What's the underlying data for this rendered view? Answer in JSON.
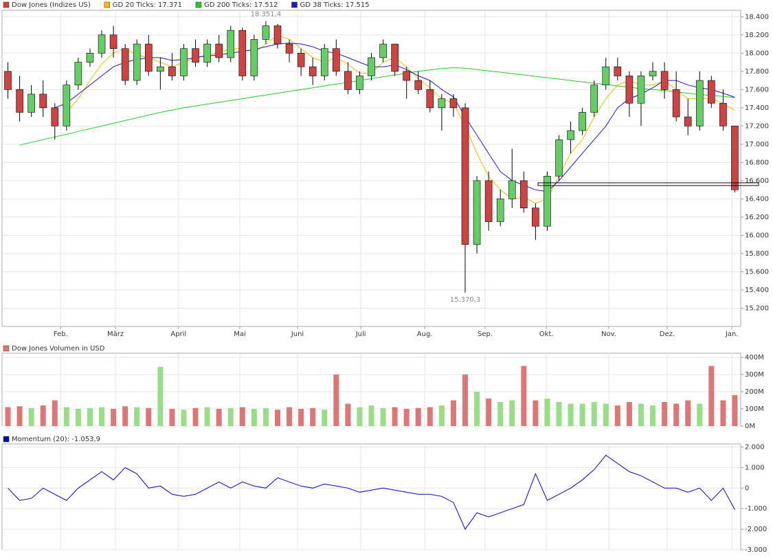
{
  "chart_data": [
    {
      "type": "candlestick",
      "name": "Dow Jones (Indizes US)",
      "x": [
        2,
        6,
        10,
        14,
        18,
        22,
        26,
        30,
        34,
        38,
        42,
        46,
        50,
        54,
        58,
        62,
        66,
        70,
        74,
        78,
        82,
        86,
        90,
        94,
        98,
        102,
        106,
        110,
        114,
        118,
        122,
        126,
        130,
        134,
        138,
        142,
        146,
        150,
        154,
        158,
        162,
        166,
        170,
        174,
        178,
        182,
        186,
        190,
        194,
        198,
        202,
        206,
        210,
        214,
        218,
        222,
        226,
        230,
        234,
        238,
        242,
        246,
        250
      ],
      "open": [
        17800,
        17600,
        17350,
        17550,
        17400,
        17200,
        17650,
        17900,
        18000,
        18200,
        18050,
        17700,
        18100,
        17800,
        17850,
        17750,
        18050,
        17900,
        18100,
        17950,
        18250,
        17750,
        18150,
        18300,
        18100,
        18000,
        17850,
        17750,
        18050,
        17800,
        17600,
        17750,
        17950,
        18100,
        17800,
        17700,
        17600,
        17400,
        17500,
        17400,
        15900,
        16600,
        16150,
        16400,
        16600,
        16300,
        16100,
        16650,
        17050,
        17150,
        17350,
        17650,
        17850,
        17750,
        17450,
        17750,
        17800,
        17600,
        17300,
        17200,
        17700,
        17450,
        17200
      ],
      "high": [
        17900,
        17750,
        17650,
        17700,
        17450,
        17700,
        17950,
        18050,
        18250,
        18300,
        18100,
        18150,
        18200,
        17950,
        18000,
        18100,
        18150,
        18150,
        18200,
        18300,
        18280,
        18200,
        18351.4,
        18320,
        18150,
        18050,
        17950,
        18100,
        18150,
        17900,
        17800,
        18000,
        18150,
        18100,
        17850,
        17800,
        17700,
        17550,
        17550,
        17450,
        16650,
        16700,
        16500,
        16950,
        16700,
        16350,
        16700,
        17100,
        17250,
        17400,
        17700,
        17950,
        17950,
        17800,
        17800,
        17900,
        17900,
        17800,
        17500,
        17800,
        17750,
        17600,
        17200
      ],
      "low": [
        17500,
        17250,
        17300,
        17300,
        17050,
        17150,
        17600,
        17850,
        17950,
        17950,
        17650,
        17650,
        17750,
        17600,
        17700,
        17700,
        17850,
        17850,
        17900,
        17900,
        17700,
        17700,
        18100,
        18050,
        17900,
        17750,
        17650,
        17700,
        17750,
        17550,
        17550,
        17700,
        17900,
        17750,
        17500,
        17550,
        17350,
        17150,
        17300,
        15370.3,
        15800,
        16050,
        16100,
        16300,
        16250,
        15950,
        16050,
        16600,
        16900,
        17100,
        17300,
        17600,
        17700,
        17300,
        17200,
        17700,
        17500,
        17250,
        17100,
        17150,
        17400,
        17150,
        16470
      ],
      "close": [
        17600,
        17350,
        17550,
        17400,
        17200,
        17650,
        17900,
        18000,
        18200,
        18050,
        17700,
        18100,
        17800,
        17850,
        17750,
        18050,
        17900,
        18100,
        17950,
        18250,
        17750,
        18150,
        18300,
        18100,
        18000,
        17850,
        17750,
        18050,
        17800,
        17600,
        17750,
        17950,
        18100,
        17800,
        17700,
        17600,
        17400,
        17500,
        17400,
        15900,
        16600,
        16150,
        16400,
        16600,
        16300,
        16100,
        16650,
        17050,
        17150,
        17350,
        17650,
        17850,
        17750,
        17450,
        17750,
        17800,
        17600,
        17300,
        17200,
        17700,
        17450,
        17200,
        16500
      ],
      "up_color": "#66cc66",
      "down_color": "#cc4444",
      "lines": [
        {
          "name": "GD 20 Ticks: 17.371",
          "color": "#f5b800",
          "values": [
            null,
            null,
            null,
            null,
            null,
            17350,
            17500,
            17700,
            17880,
            18000,
            18050,
            17980,
            17950,
            17900,
            17850,
            17900,
            17950,
            17980,
            18000,
            18050,
            18050,
            18000,
            18100,
            18200,
            18150,
            18050,
            17950,
            17900,
            17950,
            17880,
            17780,
            17780,
            17900,
            17950,
            17850,
            17720,
            17620,
            17500,
            17450,
            17200,
            16900,
            16650,
            16500,
            16400,
            16420,
            16350,
            16400,
            16650,
            16900,
            17050,
            17300,
            17500,
            17650,
            17700,
            17650,
            17650,
            17700,
            17600,
            17500,
            17500,
            17500,
            17450,
            17371
          ]
        },
        {
          "name": "GD 200 Ticks: 17.512",
          "color": "#22cc22",
          "values": [
            null,
            16990,
            17020,
            17050,
            17080,
            17110,
            17140,
            17170,
            17200,
            17230,
            17260,
            17290,
            17320,
            17350,
            17375,
            17400,
            17420,
            17440,
            17460,
            17480,
            17500,
            17520,
            17540,
            17560,
            17580,
            17600,
            17620,
            17640,
            17660,
            17680,
            17700,
            17720,
            17740,
            17760,
            17780,
            17800,
            17815,
            17830,
            17840,
            17835,
            17820,
            17805,
            17790,
            17775,
            17760,
            17745,
            17730,
            17715,
            17700,
            17685,
            17670,
            17655,
            17640,
            17625,
            17610,
            17600,
            17590,
            17575,
            17560,
            17545,
            17535,
            17525,
            17512
          ]
        },
        {
          "name": "GD 38 Ticks: 17.515",
          "color": "#1a1acc",
          "values": [
            null,
            null,
            null,
            null,
            17400,
            17450,
            17550,
            17650,
            17750,
            17850,
            17900,
            17930,
            17950,
            17950,
            17920,
            17930,
            17950,
            17970,
            17980,
            18000,
            18020,
            18040,
            18070,
            18100,
            18110,
            18100,
            18070,
            18020,
            18000,
            17950,
            17900,
            17850,
            17850,
            17870,
            17820,
            17750,
            17700,
            17600,
            17520,
            17300,
            17100,
            16900,
            16700,
            16600,
            16550,
            16500,
            16480,
            16600,
            16750,
            16900,
            17050,
            17200,
            17400,
            17500,
            17550,
            17620,
            17700,
            17700,
            17650,
            17620,
            17600,
            17560,
            17515
          ]
        }
      ],
      "high_label": "18.351,4",
      "low_label": "15.370,3",
      "xlim": [
        0,
        252
      ],
      "xticks": [
        {
          "value": 20,
          "label": "Feb."
        },
        {
          "value": 38.7,
          "label": "März"
        },
        {
          "value": 60.2,
          "label": "April"
        },
        {
          "value": 81.1,
          "label": "Mai"
        },
        {
          "value": 100.8,
          "label": "Juni"
        },
        {
          "value": 122.4,
          "label": "Juli"
        },
        {
          "value": 144.2,
          "label": "Aug."
        },
        {
          "value": 164.8,
          "label": "Sep."
        },
        {
          "value": 185.7,
          "label": "Okt."
        },
        {
          "value": 207,
          "label": "Nov."
        },
        {
          "value": 226.9,
          "label": "Dez."
        },
        {
          "value": 249,
          "label": "Jan."
        }
      ],
      "ylim": [
        15000,
        18470
      ],
      "yticks": [
        {
          "value": 15200,
          "label": "15.200"
        },
        {
          "value": 15400,
          "label": "15.400"
        },
        {
          "value": 15600,
          "label": "15.600"
        },
        {
          "value": 15800,
          "label": "15.800"
        },
        {
          "value": 16000,
          "label": "16.000"
        },
        {
          "value": 16200,
          "label": "16.200"
        },
        {
          "value": 16400,
          "label": "16.400"
        },
        {
          "value": 16600,
          "label": "16.600"
        },
        {
          "value": 16800,
          "label": "16.800"
        },
        {
          "value": 17000,
          "label": "17.000"
        },
        {
          "value": 17200,
          "label": "17.200"
        },
        {
          "value": 17400,
          "label": "17.400"
        },
        {
          "value": 17600,
          "label": "17.600"
        },
        {
          "value": 17800,
          "label": "17.800"
        },
        {
          "value": 18000,
          "label": "18.000"
        },
        {
          "value": 18200,
          "label": "18.200"
        },
        {
          "value": 18400,
          "label": "18.400"
        }
      ],
      "grid": true
    },
    {
      "type": "bar",
      "name": "Dow Jones Volumen in USD",
      "values": [
        110000000,
        115000000,
        105000000,
        120000000,
        150000000,
        110000000,
        100000000,
        105000000,
        110000000,
        100000000,
        115000000,
        110000000,
        105000000,
        345000000,
        100000000,
        95000000,
        105000000,
        110000000,
        100000000,
        105000000,
        110000000,
        100000000,
        105000000,
        95000000,
        110000000,
        100000000,
        105000000,
        95000000,
        300000000,
        130000000,
        110000000,
        120000000,
        105000000,
        110000000,
        100000000,
        105000000,
        110000000,
        120000000,
        150000000,
        300000000,
        200000000,
        160000000,
        140000000,
        150000000,
        350000000,
        150000000,
        160000000,
        140000000,
        130000000,
        130000000,
        140000000,
        130000000,
        120000000,
        140000000,
        130000000,
        120000000,
        140000000,
        130000000,
        150000000,
        130000000,
        350000000,
        150000000,
        180000000
      ],
      "up_color": "#99dd88",
      "down_color": "#dd7777",
      "ylim": [
        0,
        424000000
      ],
      "yticks": [
        {
          "value": 0,
          "label": "0M"
        },
        {
          "value": 100000000,
          "label": "100M"
        },
        {
          "value": 200000000,
          "label": "200M"
        },
        {
          "value": 300000000,
          "label": "300M"
        },
        {
          "value": 400000000,
          "label": "400M"
        }
      ],
      "grid": true
    },
    {
      "type": "line",
      "name": "Momentum (20): -1.053,9",
      "color": "#0000cc",
      "values": [
        0,
        -600,
        -500,
        0,
        -300,
        -600,
        0,
        400,
        800,
        400,
        1000,
        700,
        0,
        100,
        -300,
        -400,
        -300,
        0,
        300,
        0,
        300,
        100,
        0,
        500,
        300,
        100,
        0,
        200,
        100,
        0,
        -200,
        -100,
        0,
        -100,
        -200,
        -300,
        -300,
        -400,
        -700,
        -2000,
        -1200,
        -1400,
        -1200,
        -1000,
        -800,
        700,
        -600,
        -300,
        0,
        400,
        900,
        1600,
        1200,
        800,
        600,
        300,
        0,
        0,
        -200,
        0,
        -600,
        0,
        -1053.9
      ],
      "ylim": [
        -3000,
        2150
      ],
      "yticks": [
        {
          "value": -3000,
          "label": "-3.000"
        },
        {
          "value": -2000,
          "label": "-2.000"
        },
        {
          "value": -1000,
          "label": "-1.000"
        },
        0,
        {
          "value": 1000,
          "label": "1.000"
        },
        {
          "value": 2000,
          "label": "2.000"
        }
      ],
      "grid": true
    }
  ]
}
